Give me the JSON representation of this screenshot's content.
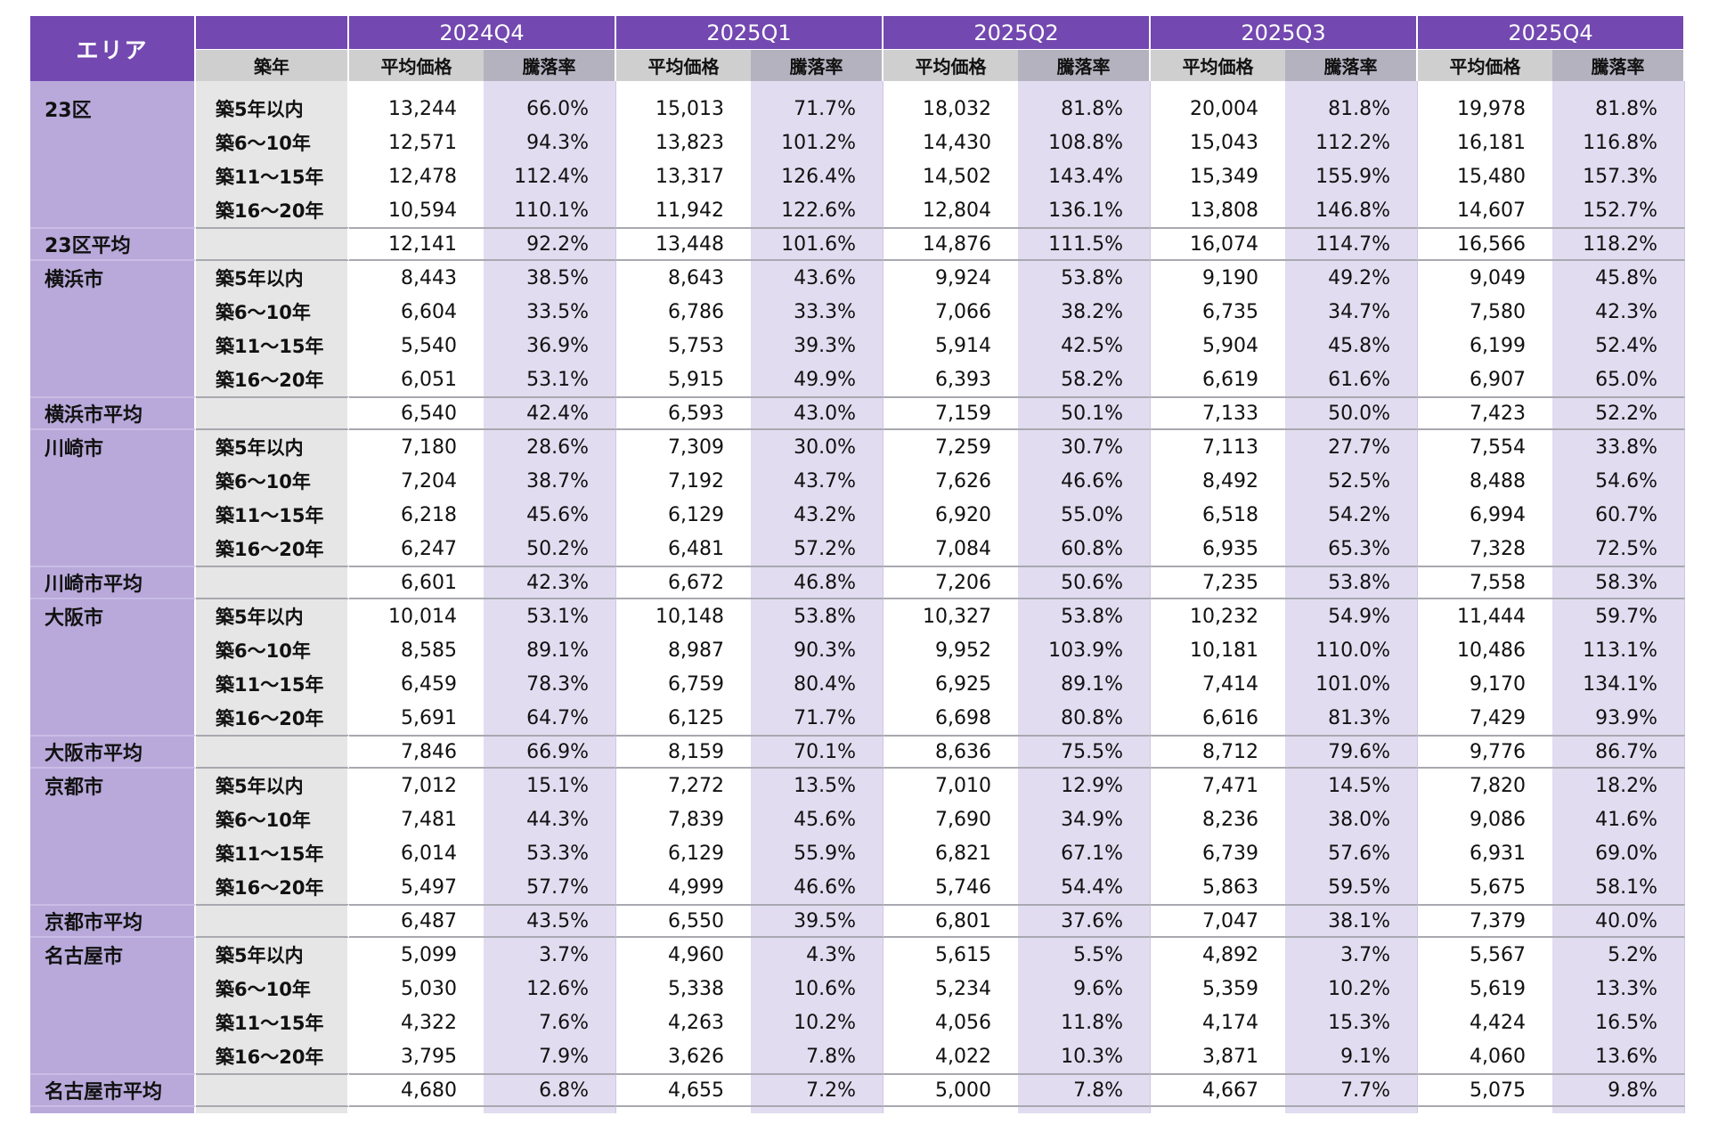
{
  "header": {
    "area_label": "エリア",
    "age_label": "築年",
    "price_label": "平均価格",
    "rate_label": "騰落率",
    "quarters": [
      "2024Q4",
      "2025Q1",
      "2025Q2",
      "2025Q3",
      "2025Q4"
    ]
  },
  "colors": {
    "header_purple": "#7348b0",
    "area_column": "#b8a9da",
    "rate_column": "#e2dcf0",
    "age_column": "#e6e6e6"
  },
  "areas": [
    {
      "name": "23区",
      "rows": [
        {
          "age": "築5年以内",
          "values": [
            [
              "13,244",
              "66.0%"
            ],
            [
              "15,013",
              "71.7%"
            ],
            [
              "18,032",
              "81.8%"
            ],
            [
              "20,004",
              "81.8%"
            ],
            [
              "19,978",
              "81.8%"
            ]
          ]
        },
        {
          "age": "築6～10年",
          "values": [
            [
              "12,571",
              "94.3%"
            ],
            [
              "13,823",
              "101.2%"
            ],
            [
              "14,430",
              "108.8%"
            ],
            [
              "15,043",
              "112.2%"
            ],
            [
              "16,181",
              "116.8%"
            ]
          ]
        },
        {
          "age": "築11～15年",
          "values": [
            [
              "12,478",
              "112.4%"
            ],
            [
              "13,317",
              "126.4%"
            ],
            [
              "14,502",
              "143.4%"
            ],
            [
              "15,349",
              "155.9%"
            ],
            [
              "15,480",
              "157.3%"
            ]
          ]
        },
        {
          "age": "築16～20年",
          "values": [
            [
              "10,594",
              "110.1%"
            ],
            [
              "11,942",
              "122.6%"
            ],
            [
              "12,804",
              "136.1%"
            ],
            [
              "13,808",
              "146.8%"
            ],
            [
              "14,607",
              "152.7%"
            ]
          ]
        }
      ],
      "average": {
        "label": "23区平均",
        "values": [
          [
            "12,141",
            "92.2%"
          ],
          [
            "13,448",
            "101.6%"
          ],
          [
            "14,876",
            "111.5%"
          ],
          [
            "16,074",
            "114.7%"
          ],
          [
            "16,566",
            "118.2%"
          ]
        ]
      }
    },
    {
      "name": "横浜市",
      "rows": [
        {
          "age": "築5年以内",
          "values": [
            [
              "8,443",
              "38.5%"
            ],
            [
              "8,643",
              "43.6%"
            ],
            [
              "9,924",
              "53.8%"
            ],
            [
              "9,190",
              "49.2%"
            ],
            [
              "9,049",
              "45.8%"
            ]
          ]
        },
        {
          "age": "築6～10年",
          "values": [
            [
              "6,604",
              "33.5%"
            ],
            [
              "6,786",
              "33.3%"
            ],
            [
              "7,066",
              "38.2%"
            ],
            [
              "6,735",
              "34.7%"
            ],
            [
              "7,580",
              "42.3%"
            ]
          ]
        },
        {
          "age": "築11～15年",
          "values": [
            [
              "5,540",
              "36.9%"
            ],
            [
              "5,753",
              "39.3%"
            ],
            [
              "5,914",
              "42.5%"
            ],
            [
              "5,904",
              "45.8%"
            ],
            [
              "6,199",
              "52.4%"
            ]
          ]
        },
        {
          "age": "築16～20年",
          "values": [
            [
              "6,051",
              "53.1%"
            ],
            [
              "5,915",
              "49.9%"
            ],
            [
              "6,393",
              "58.2%"
            ],
            [
              "6,619",
              "61.6%"
            ],
            [
              "6,907",
              "65.0%"
            ]
          ]
        }
      ],
      "average": {
        "label": "横浜市平均",
        "values": [
          [
            "6,540",
            "42.4%"
          ],
          [
            "6,593",
            "43.0%"
          ],
          [
            "7,159",
            "50.1%"
          ],
          [
            "7,133",
            "50.0%"
          ],
          [
            "7,423",
            "52.2%"
          ]
        ]
      }
    },
    {
      "name": "川崎市",
      "rows": [
        {
          "age": "築5年以内",
          "values": [
            [
              "7,180",
              "28.6%"
            ],
            [
              "7,309",
              "30.0%"
            ],
            [
              "7,259",
              "30.7%"
            ],
            [
              "7,113",
              "27.7%"
            ],
            [
              "7,554",
              "33.8%"
            ]
          ]
        },
        {
          "age": "築6～10年",
          "values": [
            [
              "7,204",
              "38.7%"
            ],
            [
              "7,192",
              "43.7%"
            ],
            [
              "7,626",
              "46.6%"
            ],
            [
              "8,492",
              "52.5%"
            ],
            [
              "8,488",
              "54.6%"
            ]
          ]
        },
        {
          "age": "築11～15年",
          "values": [
            [
              "6,218",
              "45.6%"
            ],
            [
              "6,129",
              "43.2%"
            ],
            [
              "6,920",
              "55.0%"
            ],
            [
              "6,518",
              "54.2%"
            ],
            [
              "6,994",
              "60.7%"
            ]
          ]
        },
        {
          "age": "築16～20年",
          "values": [
            [
              "6,247",
              "50.2%"
            ],
            [
              "6,481",
              "57.2%"
            ],
            [
              "7,084",
              "60.8%"
            ],
            [
              "6,935",
              "65.3%"
            ],
            [
              "7,328",
              "72.5%"
            ]
          ]
        }
      ],
      "average": {
        "label": "川崎市平均",
        "values": [
          [
            "6,601",
            "42.3%"
          ],
          [
            "6,672",
            "46.8%"
          ],
          [
            "7,206",
            "50.6%"
          ],
          [
            "7,235",
            "53.8%"
          ],
          [
            "7,558",
            "58.3%"
          ]
        ]
      }
    },
    {
      "name": "大阪市",
      "rows": [
        {
          "age": "築5年以内",
          "values": [
            [
              "10,014",
              "53.1%"
            ],
            [
              "10,148",
              "53.8%"
            ],
            [
              "10,327",
              "53.8%"
            ],
            [
              "10,232",
              "54.9%"
            ],
            [
              "11,444",
              "59.7%"
            ]
          ]
        },
        {
          "age": "築6～10年",
          "values": [
            [
              "8,585",
              "89.1%"
            ],
            [
              "8,987",
              "90.3%"
            ],
            [
              "9,952",
              "103.9%"
            ],
            [
              "10,181",
              "110.0%"
            ],
            [
              "10,486",
              "113.1%"
            ]
          ]
        },
        {
          "age": "築11～15年",
          "values": [
            [
              "6,459",
              "78.3%"
            ],
            [
              "6,759",
              "80.4%"
            ],
            [
              "6,925",
              "89.1%"
            ],
            [
              "7,414",
              "101.0%"
            ],
            [
              "9,170",
              "134.1%"
            ]
          ]
        },
        {
          "age": "築16～20年",
          "values": [
            [
              "5,691",
              "64.7%"
            ],
            [
              "6,125",
              "71.7%"
            ],
            [
              "6,698",
              "80.8%"
            ],
            [
              "6,616",
              "81.3%"
            ],
            [
              "7,429",
              "93.9%"
            ]
          ]
        }
      ],
      "average": {
        "label": "大阪市平均",
        "values": [
          [
            "7,846",
            "66.9%"
          ],
          [
            "8,159",
            "70.1%"
          ],
          [
            "8,636",
            "75.5%"
          ],
          [
            "8,712",
            "79.6%"
          ],
          [
            "9,776",
            "86.7%"
          ]
        ]
      }
    },
    {
      "name": "京都市",
      "rows": [
        {
          "age": "築5年以内",
          "values": [
            [
              "7,012",
              "15.1%"
            ],
            [
              "7,272",
              "13.5%"
            ],
            [
              "7,010",
              "12.9%"
            ],
            [
              "7,471",
              "14.5%"
            ],
            [
              "7,820",
              "18.2%"
            ]
          ]
        },
        {
          "age": "築6～10年",
          "values": [
            [
              "7,481",
              "44.3%"
            ],
            [
              "7,839",
              "45.6%"
            ],
            [
              "7,690",
              "34.9%"
            ],
            [
              "8,236",
              "38.0%"
            ],
            [
              "9,086",
              "41.6%"
            ]
          ]
        },
        {
          "age": "築11～15年",
          "values": [
            [
              "6,014",
              "53.3%"
            ],
            [
              "6,129",
              "55.9%"
            ],
            [
              "6,821",
              "67.1%"
            ],
            [
              "6,739",
              "57.6%"
            ],
            [
              "6,931",
              "69.0%"
            ]
          ]
        },
        {
          "age": "築16～20年",
          "values": [
            [
              "5,497",
              "57.7%"
            ],
            [
              "4,999",
              "46.6%"
            ],
            [
              "5,746",
              "54.4%"
            ],
            [
              "5,863",
              "59.5%"
            ],
            [
              "5,675",
              "58.1%"
            ]
          ]
        }
      ],
      "average": {
        "label": "京都市平均",
        "values": [
          [
            "6,487",
            "43.5%"
          ],
          [
            "6,550",
            "39.5%"
          ],
          [
            "6,801",
            "37.6%"
          ],
          [
            "7,047",
            "38.1%"
          ],
          [
            "7,379",
            "40.0%"
          ]
        ]
      }
    },
    {
      "name": "名古屋市",
      "rows": [
        {
          "age": "築5年以内",
          "values": [
            [
              "5,099",
              "3.7%"
            ],
            [
              "4,960",
              "4.3%"
            ],
            [
              "5,615",
              "5.5%"
            ],
            [
              "4,892",
              "3.7%"
            ],
            [
              "5,567",
              "5.2%"
            ]
          ]
        },
        {
          "age": "築6～10年",
          "values": [
            [
              "5,030",
              "12.6%"
            ],
            [
              "5,338",
              "10.6%"
            ],
            [
              "5,234",
              "9.6%"
            ],
            [
              "5,359",
              "10.2%"
            ],
            [
              "5,619",
              "13.3%"
            ]
          ]
        },
        {
          "age": "築11～15年",
          "values": [
            [
              "4,322",
              "7.6%"
            ],
            [
              "4,263",
              "10.2%"
            ],
            [
              "4,056",
              "11.8%"
            ],
            [
              "4,174",
              "15.3%"
            ],
            [
              "4,424",
              "16.5%"
            ]
          ]
        },
        {
          "age": "築16～20年",
          "values": [
            [
              "3,795",
              "7.9%"
            ],
            [
              "3,626",
              "7.8%"
            ],
            [
              "4,022",
              "10.3%"
            ],
            [
              "3,871",
              "9.1%"
            ],
            [
              "4,060",
              "13.6%"
            ]
          ]
        }
      ],
      "average": {
        "label": "名古屋市平均",
        "values": [
          [
            "4,680",
            "6.8%"
          ],
          [
            "4,655",
            "7.2%"
          ],
          [
            "5,000",
            "7.8%"
          ],
          [
            "4,667",
            "7.7%"
          ],
          [
            "5,075",
            "9.8%"
          ]
        ]
      }
    }
  ]
}
